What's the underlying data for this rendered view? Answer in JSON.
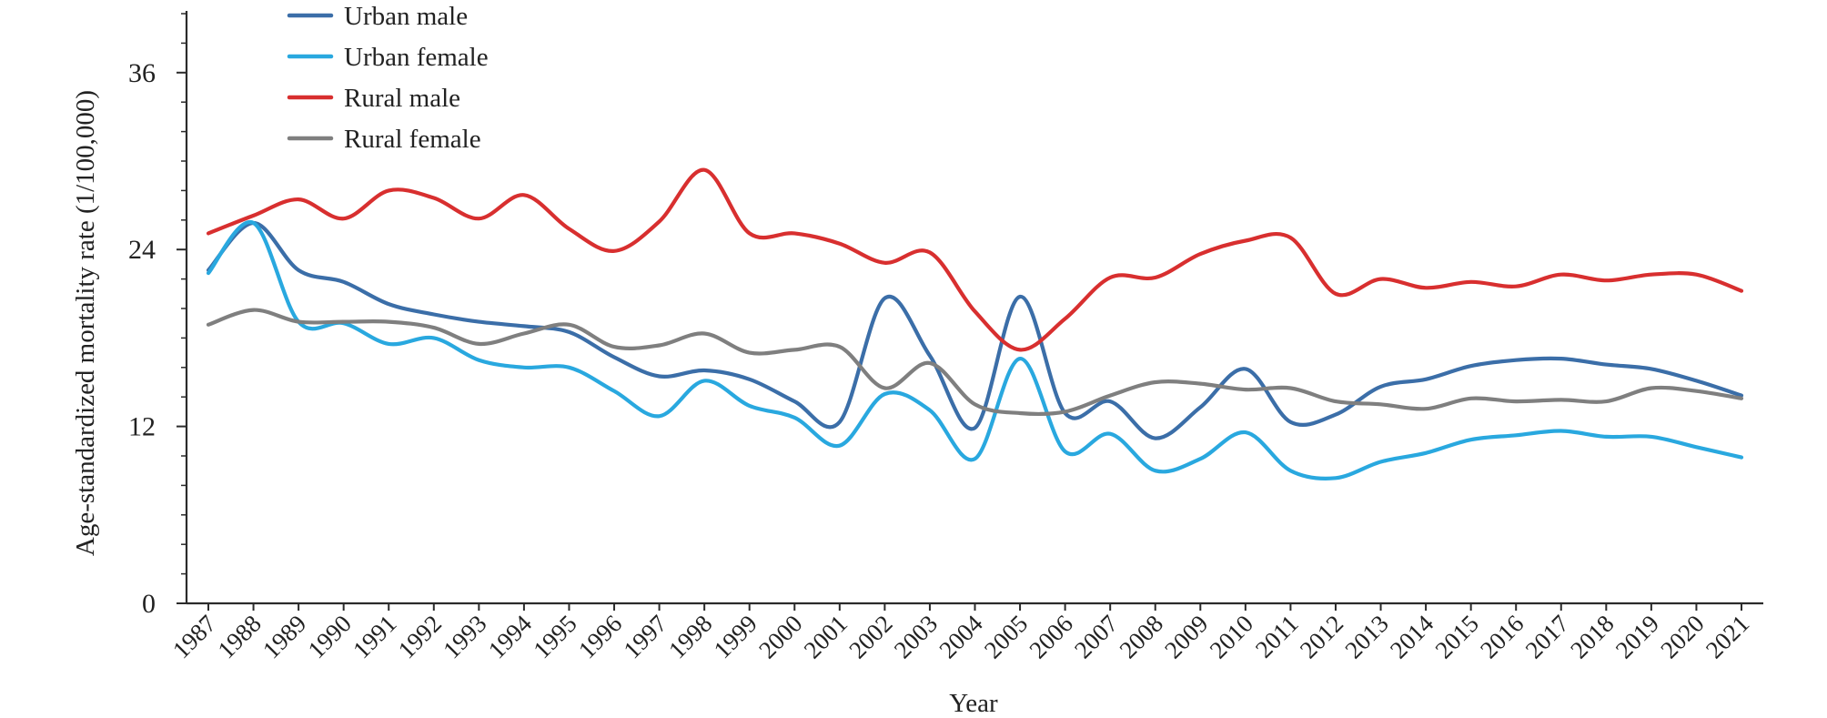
{
  "chart_data": {
    "type": "line",
    "title": "",
    "xlabel": "Year",
    "ylabel": "Age-standardized mortality rate (1/100,000)",
    "ylim": [
      0,
      40
    ],
    "y_ticks": [
      0,
      12,
      24,
      36
    ],
    "y_tick_labels": [
      "0",
      "12",
      "24",
      "36"
    ],
    "x": [
      1987,
      1988,
      1989,
      1990,
      1991,
      1992,
      1993,
      1994,
      1995,
      1996,
      1997,
      1998,
      1999,
      2000,
      2001,
      2002,
      2003,
      2004,
      2005,
      2006,
      2007,
      2008,
      2009,
      2010,
      2011,
      2012,
      2013,
      2014,
      2015,
      2016,
      2017,
      2018,
      2019,
      2020,
      2021
    ],
    "x_tick_labels": [
      "1987",
      "1988",
      "1989",
      "1990",
      "1991",
      "1992",
      "1993",
      "1994",
      "1995",
      "1996",
      "1997",
      "1998",
      "1999",
      "2000",
      "2001",
      "2002",
      "2003",
      "2004",
      "2005",
      "2006",
      "2007",
      "2008",
      "2009",
      "2010",
      "2011",
      "2012",
      "2013",
      "2014",
      "2015",
      "2016",
      "2017",
      "2018",
      "2019",
      "2020",
      "2021"
    ],
    "grid": false,
    "legend_position": "top-left",
    "series": [
      {
        "name": "Urban male",
        "color": "#3b6ea8",
        "values": [
          22.6,
          25.8,
          22.6,
          21.8,
          20.3,
          19.6,
          19.1,
          18.8,
          18.4,
          16.7,
          15.4,
          15.8,
          15.2,
          13.7,
          12.3,
          20.7,
          16.8,
          11.9,
          20.8,
          12.9,
          13.7,
          11.2,
          13.3,
          15.9,
          12.3,
          12.8,
          14.7,
          15.2,
          16.1,
          16.5,
          16.6,
          16.2,
          15.9,
          15.1,
          14.1
        ]
      },
      {
        "name": "Urban female",
        "color": "#29a8df",
        "values": [
          22.4,
          25.8,
          19.1,
          19.0,
          17.6,
          18.0,
          16.5,
          16.0,
          16.0,
          14.4,
          12.7,
          15.1,
          13.4,
          12.6,
          10.7,
          14.2,
          13.1,
          9.8,
          16.6,
          10.3,
          11.5,
          9.0,
          9.8,
          11.6,
          9.0,
          8.5,
          9.6,
          10.2,
          11.1,
          11.4,
          11.7,
          11.3,
          11.3,
          10.6,
          9.9
        ]
      },
      {
        "name": "Rural male",
        "color": "#d82f2f",
        "values": [
          25.1,
          26.3,
          27.4,
          26.1,
          28.0,
          27.5,
          26.1,
          27.7,
          25.4,
          23.9,
          25.9,
          29.4,
          25.1,
          25.1,
          24.4,
          23.1,
          23.8,
          19.8,
          17.2,
          19.3,
          22.1,
          22.1,
          23.7,
          24.6,
          24.8,
          21.0,
          22.0,
          21.4,
          21.8,
          21.5,
          22.3,
          21.9,
          22.3,
          22.3,
          21.2
        ]
      },
      {
        "name": "Rural female",
        "color": "#7f7f7f",
        "values": [
          18.9,
          19.9,
          19.1,
          19.1,
          19.1,
          18.7,
          17.6,
          18.3,
          18.9,
          17.4,
          17.5,
          18.3,
          17.0,
          17.2,
          17.4,
          14.6,
          16.3,
          13.5,
          12.9,
          13.0,
          14.1,
          15.0,
          14.9,
          14.5,
          14.6,
          13.7,
          13.5,
          13.2,
          13.9,
          13.7,
          13.8,
          13.7,
          14.6,
          14.4,
          13.9
        ]
      }
    ]
  }
}
